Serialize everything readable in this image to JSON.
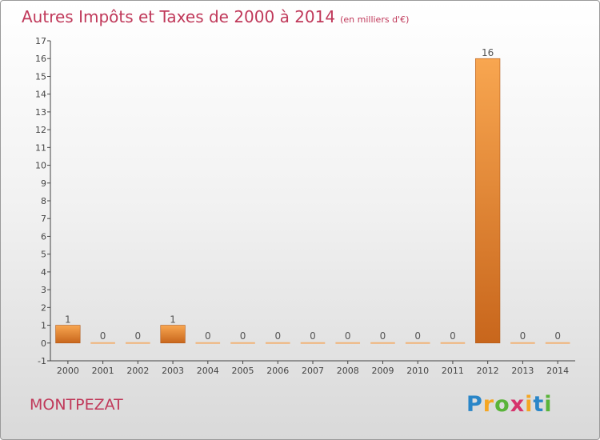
{
  "title": "Autres Impôts et Taxes de 2000 à 2014",
  "unit": "(en milliers d'€)",
  "commune": "MONTPEZAT",
  "logo": {
    "letters": [
      "P",
      "r",
      "o",
      "x",
      "i",
      "t",
      "i"
    ],
    "colors": [
      "#2a86c8",
      "#f5a623",
      "#5ab43a",
      "#d6336c",
      "#f5a623",
      "#2a86c8",
      "#5ab43a"
    ]
  },
  "colors": {
    "bar_top": "#f8a650",
    "bar_bottom": "#c8661c",
    "zero_bar": "#f0b47a"
  },
  "chart_data": {
    "type": "bar",
    "title": "Autres Impôts et Taxes de 2000 à 2014",
    "subtitle": "(en milliers d'€)",
    "categories": [
      "2000",
      "2001",
      "2002",
      "2003",
      "2004",
      "2005",
      "2006",
      "2007",
      "2008",
      "2009",
      "2010",
      "2011",
      "2012",
      "2013",
      "2014"
    ],
    "values": [
      1,
      0,
      0,
      1,
      0,
      0,
      0,
      0,
      0,
      0,
      0,
      0,
      16,
      0,
      0
    ],
    "ylim": [
      -1,
      17
    ],
    "yticks": [
      -1,
      0,
      1,
      2,
      3,
      4,
      5,
      6,
      7,
      8,
      9,
      10,
      11,
      12,
      13,
      14,
      15,
      16,
      17
    ],
    "grid": false,
    "legend": "none"
  }
}
